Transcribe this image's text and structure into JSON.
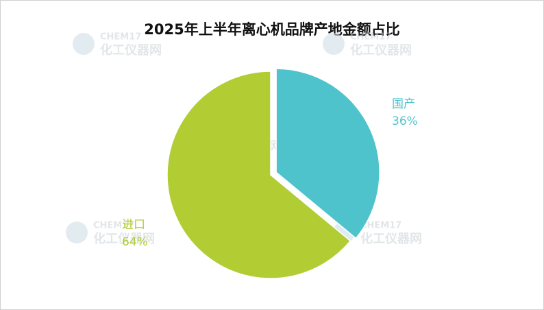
{
  "chart_data": {
    "type": "pie",
    "title": "2025年上半年离心机品牌产地金额占比",
    "categories": [
      "国产",
      "进口"
    ],
    "values": [
      36,
      64
    ],
    "value_labels": [
      "36%",
      "64%"
    ],
    "colors": [
      "#4fc3cc",
      "#b2cd33"
    ],
    "explode": [
      true,
      false
    ]
  },
  "watermark": {
    "brand": "CHEM17",
    "name": "化工仪器网"
  }
}
